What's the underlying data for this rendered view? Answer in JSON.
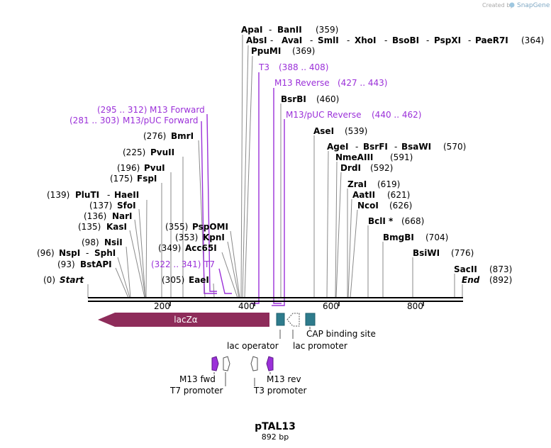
{
  "credit": {
    "prefix": "Created by",
    "brand": "SnapGene"
  },
  "title": "pTAL13",
  "subtitle": "892 bp",
  "scale": {
    "ticks": [
      "200",
      "400",
      "600",
      "800"
    ]
  },
  "colors": {
    "primer": "#9b30d9",
    "lacz": "#8e2c5a",
    "teal": "#2e7b8c",
    "backbone": "#000000"
  },
  "labels": {
    "start_pos": "(0)",
    "start": "Start",
    "end": "End",
    "end_pos": "(892)",
    "bstapi_pos": "(93)",
    "bstapi": "BstAPI",
    "nspi_pos": "(96)",
    "nspi": "NspI",
    "sphi": "SphI",
    "nsii_pos": "(98)",
    "nsii": "NsiI",
    "kasi_pos": "(135)",
    "kasi": "KasI",
    "nari_pos": "(136)",
    "nari": "NarI",
    "sfoi_pos": "(137)",
    "sfoi": "SfoI",
    "pluti_pos": "(139)",
    "pluti": "PluTI",
    "haeii": "HaeII",
    "fspi_pos": "(175)",
    "fspi": "FspI",
    "pvui_pos": "(196)",
    "pvui": "PvuI",
    "pvuii_pos": "(225)",
    "pvuii": "PvuII",
    "bmri_pos": "(276)",
    "bmri": "BmrI",
    "m13pucf_pos": "(281 .. 303)",
    "m13pucf": "M13/pUC Forward",
    "m13f_pos": "(295 .. 312)",
    "m13f": "M13 Forward",
    "eaei_pos": "(305)",
    "eaei": "EaeI",
    "t7_pos": "(322 .. 341)",
    "t7": "T7",
    "acc65i_pos": "(349)",
    "acc65i": "Acc65I",
    "kpni_pos": "(353)",
    "kpni": "KpnI",
    "pspomi_pos": "(355)",
    "pspomi": "PspOMI",
    "apai": "ApaI",
    "banii": "BanII",
    "apai_pos": "(359)",
    "absi": "AbsI",
    "avai": "AvaI",
    "smli": "SmlI",
    "xhoi": "XhoI",
    "bsobi": "BsoBI",
    "pspxi": "PspXI",
    "paer7i": "PaeR7I",
    "absi_pos": "(364)",
    "ppumi": "PpuMI",
    "ppumi_pos": "(369)",
    "t3": "T3",
    "t3_pos": "(388 .. 408)",
    "m13rev": "M13 Reverse",
    "m13rev_pos": "(427 .. 443)",
    "bsrbi": "BsrBI",
    "bsrbi_pos": "(460)",
    "m13pucrev": "M13/pUC Reverse",
    "m13pucrev_pos": "(440 .. 462)",
    "asei": "AseI",
    "asei_pos": "(539)",
    "agei": "AgeI",
    "bsrfi": "BsrFI",
    "bsawi": "BsaWI",
    "agei_pos": "(570)",
    "nmeaiii": "NmeAIII",
    "nmeaiii_pos": "(591)",
    "drdi": "DrdI",
    "drdi_pos": "(592)",
    "zrai": "ZraI",
    "zrai_pos": "(619)",
    "aatii": "AatII",
    "aatii_pos": "(621)",
    "ncoi": "NcoI",
    "ncoi_pos": "(626)",
    "bcli": "BclI *",
    "bcli_pos": "(668)",
    "bmgbi": "BmgBI",
    "bmgbi_pos": "(704)",
    "bsiwi": "BsiWI",
    "bsiwi_pos": "(776)",
    "sacii": "SacII",
    "sacii_pos": "(873)"
  },
  "features": {
    "lacz": "lacZα",
    "lac_operator": "lac operator",
    "lac_promoter": "lac promoter",
    "cap_site": "CAP binding site",
    "m13_fwd": "M13 fwd",
    "t7_promoter": "T7 promoter",
    "m13_rev": "M13 rev",
    "t3_promoter": "T3 promoter"
  }
}
